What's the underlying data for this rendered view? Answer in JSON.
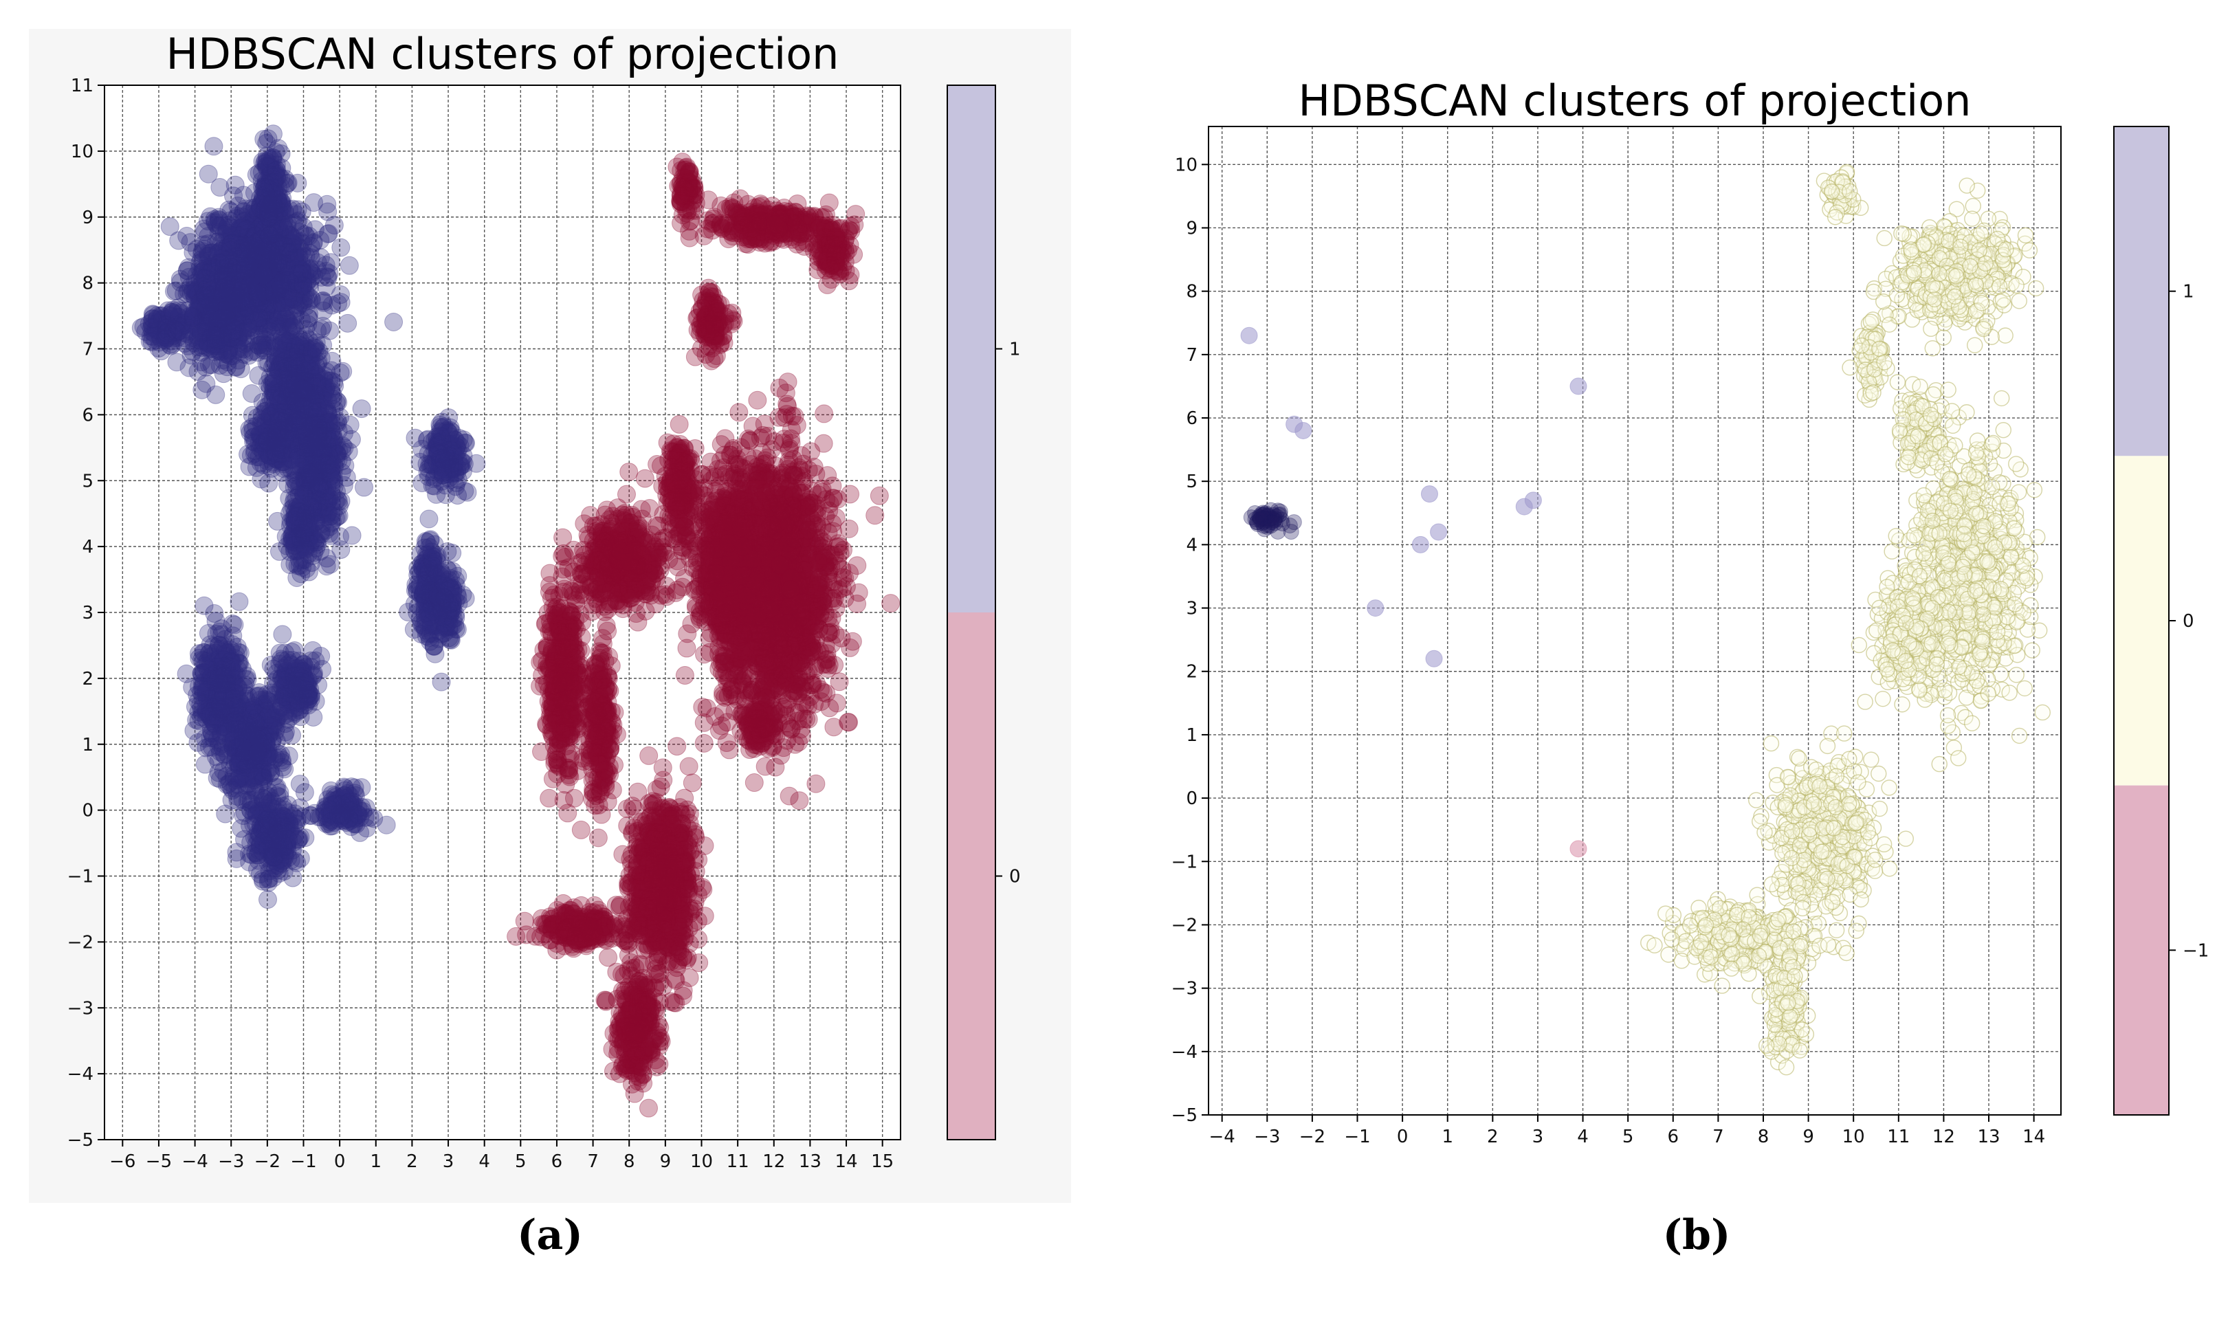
{
  "chart_data": [
    {
      "panel": "a",
      "type": "scatter",
      "title": "HDBSCAN clusters of projection",
      "xlabel": "",
      "ylabel": "",
      "xlim": [
        -6.5,
        15.5
      ],
      "ylim": [
        -5,
        11
      ],
      "xticks": [
        -6,
        -5,
        -4,
        -3,
        -2,
        -1,
        0,
        1,
        2,
        3,
        4,
        5,
        6,
        7,
        8,
        9,
        10,
        11,
        12,
        13,
        14,
        15
      ],
      "yticks": [
        -5,
        -4,
        -3,
        -2,
        -1,
        0,
        1,
        2,
        3,
        4,
        5,
        6,
        7,
        8,
        9,
        10,
        11
      ],
      "grid": true,
      "colors": {
        "1": "#2e2a7e",
        "0": "#8b0a2e"
      },
      "colorbar": {
        "ticks": [
          "1",
          "0"
        ],
        "segments": [
          {
            "label": "1",
            "color": "#c6c3de"
          },
          {
            "label": "0",
            "color": "#e0b0c0"
          }
        ]
      },
      "series": [
        {
          "cluster": "1",
          "blobs": [
            {
              "cx": -2.2,
              "cy": 8.2,
              "rx": 1.6,
              "ry": 1.0
            },
            {
              "cx": -1.9,
              "cy": 9.3,
              "rx": 0.4,
              "ry": 0.7
            },
            {
              "cx": -4.7,
              "cy": 7.3,
              "rx": 0.6,
              "ry": 0.3
            },
            {
              "cx": -3.3,
              "cy": 7.5,
              "rx": 0.9,
              "ry": 0.8
            },
            {
              "cx": -1.2,
              "cy": 6.4,
              "rx": 0.8,
              "ry": 0.9
            },
            {
              "cx": -0.6,
              "cy": 5.3,
              "rx": 0.7,
              "ry": 1.2
            },
            {
              "cx": -1.1,
              "cy": 4.2,
              "rx": 0.4,
              "ry": 0.5
            },
            {
              "cx": -1.8,
              "cy": 5.6,
              "rx": 0.6,
              "ry": 0.5
            },
            {
              "cx": 2.9,
              "cy": 5.4,
              "rx": 0.5,
              "ry": 0.5
            },
            {
              "cx": 2.5,
              "cy": 3.3,
              "rx": 0.4,
              "ry": 0.8
            },
            {
              "cx": 3.0,
              "cy": 3.1,
              "rx": 0.3,
              "ry": 0.5
            },
            {
              "cx": -3.3,
              "cy": 1.8,
              "rx": 0.6,
              "ry": 0.9
            },
            {
              "cx": -2.4,
              "cy": 1.0,
              "rx": 0.8,
              "ry": 0.8
            },
            {
              "cx": -1.2,
              "cy": 1.9,
              "rx": 0.6,
              "ry": 0.5
            },
            {
              "cx": -1.8,
              "cy": -0.4,
              "rx": 0.7,
              "ry": 0.6
            },
            {
              "cx": 0.1,
              "cy": 0.0,
              "rx": 0.7,
              "ry": 0.3
            }
          ]
        },
        {
          "cluster": "0",
          "blobs": [
            {
              "cx": 9.6,
              "cy": 9.4,
              "rx": 0.3,
              "ry": 0.4
            },
            {
              "cx": 11.8,
              "cy": 8.9,
              "rx": 1.6,
              "ry": 0.3
            },
            {
              "cx": 13.6,
              "cy": 8.5,
              "rx": 0.5,
              "ry": 0.4
            },
            {
              "cx": 10.3,
              "cy": 7.4,
              "rx": 0.4,
              "ry": 0.5
            },
            {
              "cx": 12.0,
              "cy": 3.4,
              "rx": 1.6,
              "ry": 2.0
            },
            {
              "cx": 10.7,
              "cy": 3.7,
              "rx": 0.8,
              "ry": 1.2
            },
            {
              "cx": 9.4,
              "cy": 4.9,
              "rx": 0.4,
              "ry": 0.8
            },
            {
              "cx": 7.8,
              "cy": 3.8,
              "rx": 1.1,
              "ry": 0.7
            },
            {
              "cx": 6.2,
              "cy": 2.0,
              "rx": 0.5,
              "ry": 1.4
            },
            {
              "cx": 7.2,
              "cy": 1.3,
              "rx": 0.3,
              "ry": 1.2
            },
            {
              "cx": 8.9,
              "cy": -1.1,
              "rx": 0.9,
              "ry": 1.3
            },
            {
              "cx": 6.7,
              "cy": -1.8,
              "rx": 1.2,
              "ry": 0.3
            },
            {
              "cx": 8.2,
              "cy": -3.3,
              "rx": 0.6,
              "ry": 0.8
            },
            {
              "cx": 11.6,
              "cy": 1.3,
              "rx": 0.4,
              "ry": 0.4
            }
          ]
        }
      ]
    },
    {
      "panel": "b",
      "type": "scatter",
      "title": "HDBSCAN clusters of projection",
      "xlabel": "",
      "ylabel": "",
      "xlim": [
        -4.3,
        14.6
      ],
      "ylim": [
        -5,
        10.6
      ],
      "xticks": [
        -4,
        -3,
        -2,
        -1,
        0,
        1,
        2,
        3,
        4,
        5,
        6,
        7,
        8,
        9,
        10,
        11,
        12,
        13,
        14
      ],
      "yticks": [
        -5,
        -4,
        -3,
        -2,
        -1,
        0,
        1,
        2,
        3,
        4,
        5,
        6,
        7,
        8,
        9,
        10
      ],
      "grid": true,
      "colors": {
        "1": "#1e1a5e",
        "0": "#d8d87a",
        "-1": "#d88ea8"
      },
      "colorbar": {
        "ticks": [
          "1",
          "0",
          "−1"
        ],
        "segments": [
          {
            "label": "1",
            "color": "#c8c4de"
          },
          {
            "label": "0",
            "color": "#fdfbe6"
          },
          {
            "label": "−1",
            "color": "#e2b2c4"
          }
        ]
      },
      "series": [
        {
          "cluster": "1",
          "points": [
            [
              -3.4,
              7.3
            ],
            [
              -2.4,
              5.9
            ],
            [
              -2.2,
              5.8
            ],
            [
              0.6,
              4.8
            ],
            [
              0.8,
              4.2
            ],
            [
              0.4,
              4.0
            ],
            [
              -0.6,
              3.0
            ],
            [
              0.7,
              2.2
            ],
            [
              2.7,
              4.6
            ],
            [
              2.9,
              4.7
            ],
            [
              3.9,
              6.5
            ]
          ],
          "blobs": [
            {
              "cx": -3.0,
              "cy": 4.4,
              "rx": 0.45,
              "ry": 0.15
            }
          ]
        },
        {
          "cluster": "0",
          "blobs": [
            {
              "cx": 12.2,
              "cy": 8.3,
              "rx": 1.3,
              "ry": 0.8
            },
            {
              "cx": 11.5,
              "cy": 5.8,
              "rx": 0.5,
              "ry": 0.6
            },
            {
              "cx": 12.5,
              "cy": 3.5,
              "rx": 1.2,
              "ry": 1.8
            },
            {
              "cx": 11.2,
              "cy": 2.6,
              "rx": 0.7,
              "ry": 0.9
            },
            {
              "cx": 10.4,
              "cy": 7.0,
              "rx": 0.3,
              "ry": 0.6
            },
            {
              "cx": 9.3,
              "cy": -0.6,
              "rx": 1.1,
              "ry": 1.1
            },
            {
              "cx": 7.5,
              "cy": -2.2,
              "rx": 1.5,
              "ry": 0.5
            },
            {
              "cx": 8.5,
              "cy": -3.3,
              "rx": 0.4,
              "ry": 0.8
            },
            {
              "cx": 9.7,
              "cy": 9.5,
              "rx": 0.3,
              "ry": 0.3
            }
          ]
        },
        {
          "cluster": "-1",
          "points": [
            [
              3.9,
              -0.8
            ]
          ]
        }
      ]
    }
  ],
  "captions": {
    "a": "(a)",
    "b": "(b)"
  }
}
